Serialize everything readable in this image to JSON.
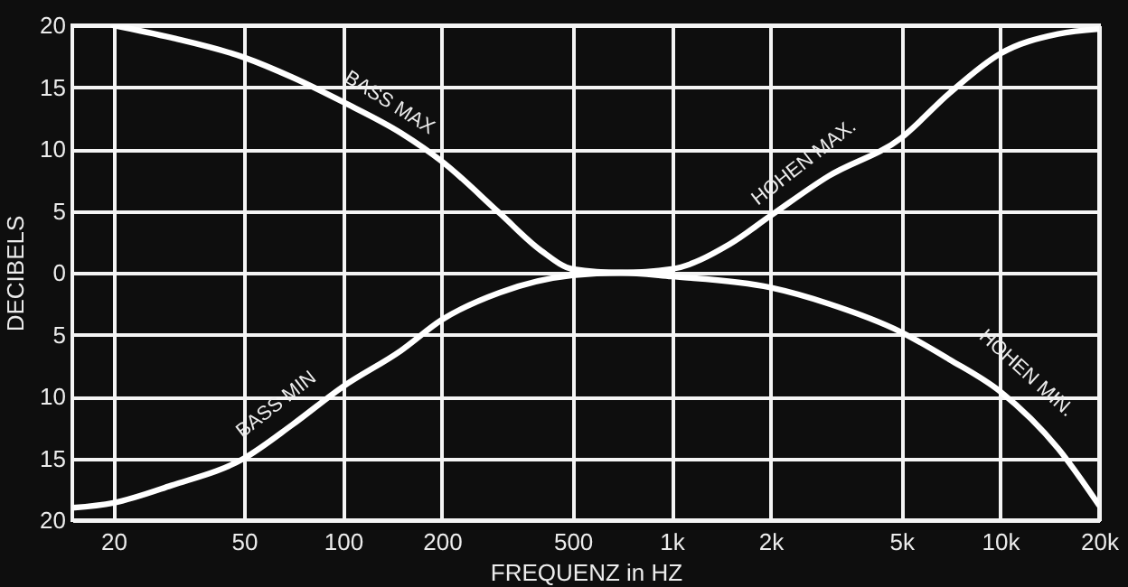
{
  "chart_data": {
    "type": "line",
    "xlabel": "FREQUENZ in HZ",
    "ylabel": "DECIBELS",
    "log": "x",
    "grid": true,
    "marker": "none",
    "xlim": [
      15,
      20000
    ],
    "xticks": [
      20,
      50,
      100,
      200,
      500,
      {
        "value": 1000,
        "label": "1k"
      },
      {
        "value": 2000,
        "label": "2k"
      },
      {
        "value": 5000,
        "label": "5k"
      },
      {
        "value": 10000,
        "label": "10k"
      },
      {
        "value": 20000,
        "label": "20k"
      }
    ],
    "ylim": [
      -20,
      20
    ],
    "yticks": [
      {
        "value": -20,
        "label": "20"
      },
      {
        "value": -15,
        "label": "15"
      },
      {
        "value": -10,
        "label": "10"
      },
      {
        "value": -5,
        "label": "5"
      },
      0,
      5,
      10,
      15,
      20
    ],
    "series": [
      {
        "name": "BASS MAX",
        "color": "#ffffff",
        "x": [
          20,
          30,
          50,
          70,
          100,
          150,
          200,
          300,
          400,
          500,
          700,
          1000
        ],
        "values": [
          20,
          19,
          17.4,
          15.8,
          13.8,
          11.3,
          9,
          4.8,
          1.8,
          0.3,
          0,
          0
        ]
      },
      {
        "name": "BASS MIN",
        "color": "#ffffff",
        "x": [
          15,
          20,
          30,
          50,
          70,
          100,
          150,
          200,
          300,
          500,
          700,
          1000
        ],
        "values": [
          -19,
          -18.6,
          -17.2,
          -15,
          -12.3,
          -9.2,
          -6.3,
          -3.8,
          -1.6,
          -0.2,
          0,
          0
        ]
      },
      {
        "name": "HOHEN MAX.",
        "color": "#ffffff",
        "x": [
          500,
          700,
          1000,
          1500,
          2000,
          3000,
          5000,
          7000,
          10000,
          15000,
          20000
        ],
        "values": [
          0,
          0,
          0.3,
          2.3,
          4.6,
          7.8,
          10.9,
          14.5,
          17.7,
          19.3,
          19.7
        ]
      },
      {
        "name": "HOHEN MIN.",
        "color": "#ffffff",
        "x": [
          500,
          700,
          1000,
          2000,
          3000,
          5000,
          7000,
          10000,
          15000,
          20000
        ],
        "values": [
          0,
          0,
          -0.3,
          -1.2,
          -2.5,
          -4.8,
          -7,
          -9.6,
          -14.2,
          -18.8
        ]
      }
    ]
  }
}
